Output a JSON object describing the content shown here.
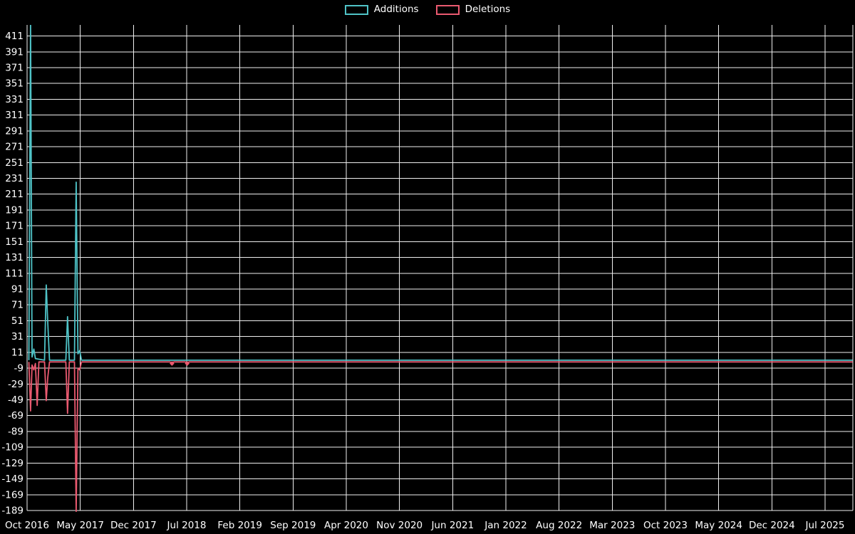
{
  "page": {
    "background": "#000000"
  },
  "legend": {
    "items": [
      {
        "label": "Additions",
        "color": "#4fc3c7"
      },
      {
        "label": "Deletions",
        "color": "#ea5a70"
      }
    ]
  },
  "chart_data": {
    "type": "line",
    "title": "",
    "xlabel": "",
    "ylabel": "",
    "background": "#000000",
    "grid": true,
    "grid_color": "#efefef",
    "text_color": "#ffffff",
    "legend_position": "top-center",
    "x_axis": {
      "tick_labels": [
        "Oct 2016",
        "May 2017",
        "Dec 2017",
        "Jul 2018",
        "Feb 2019",
        "Sep 2019",
        "Apr 2020",
        "Nov 2020",
        "Jun 2021",
        "Jan 2022",
        "Aug 2022",
        "Mar 2023",
        "Oct 2023",
        "May 2024",
        "Dec 2024",
        "Jul 2025"
      ],
      "tick_interval_months": 7
    },
    "y_axis": {
      "ticks": [
        411,
        391,
        371,
        351,
        331,
        311,
        291,
        271,
        251,
        231,
        211,
        191,
        171,
        151,
        131,
        111,
        91,
        71,
        51,
        31,
        11,
        -9,
        -29,
        -49,
        -69,
        -89,
        -109,
        -129,
        -149,
        -169,
        -189
      ],
      "min": -189,
      "max": 425
    },
    "series": [
      {
        "name": "Additions",
        "color": "#4fc3c7",
        "points": [
          [
            "2016-10-08",
            0
          ],
          [
            "2016-10-15",
            430
          ],
          [
            "2016-10-21",
            4
          ],
          [
            "2016-10-28",
            14
          ],
          [
            "2016-11-04",
            2
          ],
          [
            "2016-12-10",
            0
          ],
          [
            "2016-12-17",
            95
          ],
          [
            "2016-12-23",
            48
          ],
          [
            "2016-12-30",
            0
          ],
          [
            "2017-03-04",
            0
          ],
          [
            "2017-03-11",
            55
          ],
          [
            "2017-03-18",
            0
          ],
          [
            "2017-04-08",
            0
          ],
          [
            "2017-04-15",
            225
          ],
          [
            "2017-04-22",
            8
          ],
          [
            "2017-04-29",
            12
          ],
          [
            "2017-05-06",
            0
          ],
          [
            "2025-10-20",
            0
          ]
        ],
        "markers": []
      },
      {
        "name": "Deletions",
        "color": "#ea5a70",
        "points": [
          [
            "2016-10-08",
            0
          ],
          [
            "2016-10-15",
            -62
          ],
          [
            "2016-10-21",
            -4
          ],
          [
            "2016-10-28",
            -10
          ],
          [
            "2016-11-04",
            -2
          ],
          [
            "2016-11-11",
            -55
          ],
          [
            "2016-11-18",
            0
          ],
          [
            "2016-12-10",
            0
          ],
          [
            "2016-12-17",
            -49
          ],
          [
            "2016-12-23",
            -20
          ],
          [
            "2016-12-30",
            0
          ],
          [
            "2017-03-04",
            0
          ],
          [
            "2017-03-11",
            -65
          ],
          [
            "2017-03-18",
            0
          ],
          [
            "2017-04-08",
            0
          ],
          [
            "2017-04-15",
            -189
          ],
          [
            "2017-04-22",
            -8
          ],
          [
            "2017-04-29",
            -10
          ],
          [
            "2017-05-06",
            0
          ],
          [
            "2018-04-26",
            0
          ],
          [
            "2018-05-03",
            -2
          ],
          [
            "2018-05-10",
            0
          ],
          [
            "2018-06-26",
            0
          ],
          [
            "2018-07-03",
            -2
          ],
          [
            "2018-07-10",
            0
          ],
          [
            "2025-10-20",
            0
          ]
        ],
        "markers": [
          [
            "2018-05-03",
            -2
          ],
          [
            "2018-07-03",
            -2
          ]
        ]
      }
    ]
  }
}
